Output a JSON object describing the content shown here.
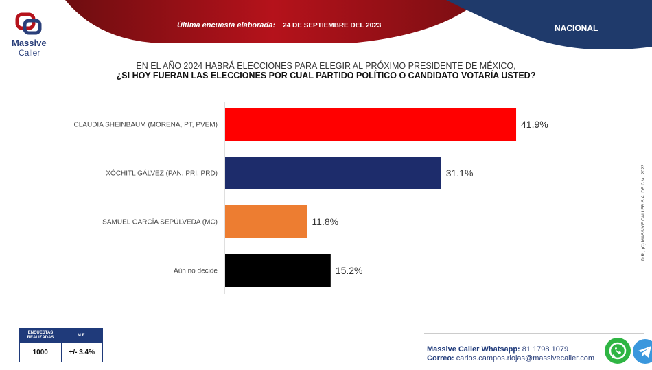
{
  "header": {
    "brand_line1": "Massive",
    "brand_line2": "Caller",
    "survey_label": "Última encuesta elaborada:",
    "survey_date": "24 DE SEPTIEMBRE DEL 2023",
    "scope": "NACIONAL"
  },
  "question": {
    "line1": "EN EL AÑO 2024 HABRÁ ELECCIONES PARA ELEGIR AL PRÓXIMO PRESIDENTE DE MÉXICO,",
    "line2": "¿SI HOY FUERAN LAS ELECCIONES POR CUAL PARTIDO POLÍTICO O CANDIDATO VOTARÍA USTED?"
  },
  "chart_data": {
    "type": "bar",
    "orientation": "horizontal",
    "categories": [
      "CLAUDIA SHEINBAUM (MORENA, PT, PVEM)",
      "XÓCHITL GÁLVEZ (PAN, PRI, PRD)",
      "SAMUEL GARCÍA SEPÚLVEDA (MC)",
      "Aún no decide"
    ],
    "values": [
      41.9,
      31.1,
      11.8,
      15.2
    ],
    "value_labels": [
      "41.9%",
      "31.1%",
      "11.8%",
      "15.2%"
    ],
    "colors": [
      "#ff0000",
      "#1d2c6b",
      "#ed7d31",
      "#000000"
    ],
    "xlim": [
      0,
      50
    ],
    "grid": false,
    "legend": "none"
  },
  "stats": {
    "col1_header": "ENCUESTAS REALIZADAS",
    "col2_header": "M.E.",
    "col1_value": "1000",
    "col2_value": "+/- 3.4%"
  },
  "contact": {
    "whatsapp_label": "Massive Caller Whatsapp:",
    "whatsapp_number": "81 1798 1079",
    "email_label": "Correo:",
    "email": "carlos.campos.riojas@massivecaller.com"
  },
  "copyright": "D.R., (C) MASSIVE CALLER S.A. DE C.V., 2023",
  "icons": [
    "massive-caller-logo-icon",
    "whatsapp-icon",
    "telegram-icon"
  ],
  "colors": {
    "brand_red": "#b5121b",
    "brand_navy": "#1f3a6b"
  }
}
